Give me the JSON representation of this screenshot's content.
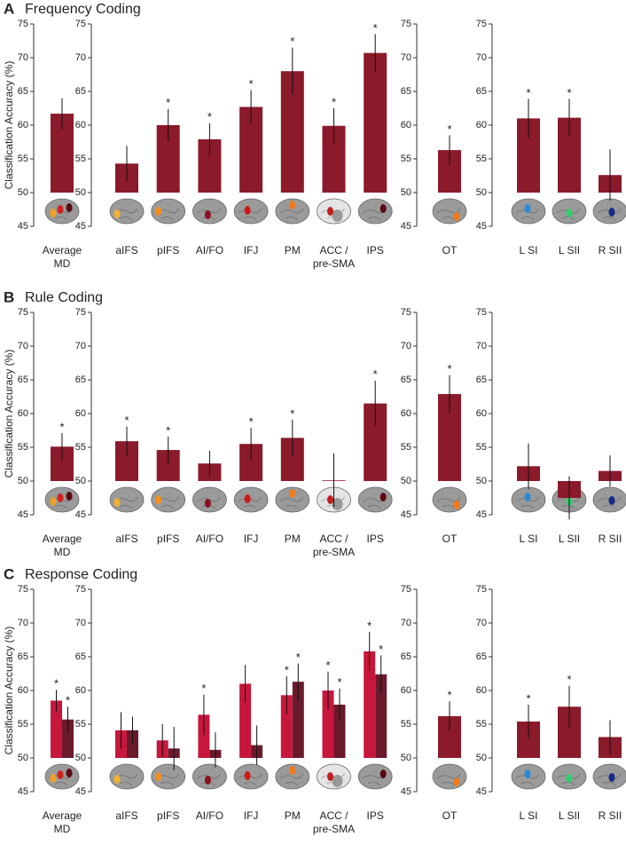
{
  "chart_data": [
    {
      "type": "bar",
      "panel_label": "A",
      "title": "Frequency Coding",
      "ylabel": "Classification Accuracy (%)",
      "ylim": [
        45,
        75
      ],
      "yticks": [
        45,
        50,
        55,
        60,
        65,
        70,
        75
      ],
      "baseline": 50,
      "groups": [
        {
          "categories": [
            "Average\nMD"
          ],
          "series": [
            {
              "color": "#8b1a2b",
              "values": [
                61.7
              ],
              "errors": [
                2.3
              ],
              "significance": [
                null
              ]
            }
          ]
        },
        {
          "categories": [
            "aIFS",
            "pIFS",
            "AI/FO",
            "IFJ",
            "PM",
            "ACC /\npre-SMA",
            "IPS"
          ],
          "series": [
            {
              "color": "#8b1a2b",
              "values": [
                54.3,
                60.0,
                57.9,
                62.7,
                68.0,
                59.9,
                70.7
              ],
              "errors": [
                2.6,
                2.4,
                2.4,
                2.5,
                3.5,
                2.6,
                2.8
              ],
              "significance": [
                null,
                "*",
                "*",
                "*",
                "*",
                "*",
                "*"
              ]
            }
          ]
        },
        {
          "categories": [
            "OT"
          ],
          "series": [
            {
              "color": "#8b1a2b",
              "values": [
                56.3
              ],
              "errors": [
                2.2
              ],
              "significance": [
                "*"
              ]
            }
          ]
        },
        {
          "categories": [
            "L SI",
            "L SII",
            "R SII"
          ],
          "series": [
            {
              "color": "#8b1a2b",
              "values": [
                61.0,
                61.1,
                52.6
              ],
              "errors": [
                2.9,
                2.8,
                3.8
              ],
              "significance": [
                "*",
                "*",
                null
              ]
            }
          ]
        }
      ]
    },
    {
      "type": "bar",
      "panel_label": "B",
      "title": "Rule Coding",
      "ylabel": "Classification Accuracy (%)",
      "ylim": [
        45,
        75
      ],
      "yticks": [
        45,
        50,
        55,
        60,
        65,
        70,
        75
      ],
      "baseline": 50,
      "groups": [
        {
          "categories": [
            "Average\nMD"
          ],
          "series": [
            {
              "color": "#8b1a2b",
              "values": [
                55.1
              ],
              "errors": [
                2.0
              ],
              "significance": [
                "*"
              ]
            }
          ]
        },
        {
          "categories": [
            "aIFS",
            "pIFS",
            "AI/FO",
            "IFJ",
            "PM",
            "ACC /\npre-SMA",
            "IPS"
          ],
          "series": [
            {
              "color": "#8b1a2b",
              "values": [
                55.9,
                54.6,
                52.6,
                55.5,
                56.4,
                50.1,
                61.5
              ],
              "errors": [
                2.2,
                2.0,
                1.9,
                2.4,
                2.7,
                4.0,
                3.4
              ],
              "significance": [
                "*",
                "*",
                null,
                "*",
                "*",
                null,
                "*"
              ]
            }
          ]
        },
        {
          "categories": [
            "OT"
          ],
          "series": [
            {
              "color": "#8b1a2b",
              "values": [
                62.9
              ],
              "errors": [
                2.8
              ],
              "significance": [
                "*"
              ]
            }
          ]
        },
        {
          "categories": [
            "L SI",
            "L SII",
            "R SII"
          ],
          "series": [
            {
              "color": "#8b1a2b",
              "values": [
                52.2,
                47.5,
                51.5
              ],
              "errors": [
                3.4,
                3.2,
                2.3
              ],
              "significance": [
                null,
                null,
                null
              ]
            }
          ]
        }
      ]
    },
    {
      "type": "bar",
      "panel_label": "C",
      "title": "Response Coding",
      "ylabel": "Classification Accuracy (%)",
      "ylim": [
        45,
        75
      ],
      "yticks": [
        45,
        50,
        55,
        60,
        65,
        70,
        75
      ],
      "baseline": 50,
      "groups": [
        {
          "categories": [
            "Average\nMD"
          ],
          "series": [
            {
              "color": "#c8173c",
              "values": [
                58.5
              ],
              "errors": [
                1.6
              ],
              "significance": [
                "*"
              ]
            },
            {
              "color": "#6b1a2c",
              "values": [
                55.7
              ],
              "errors": [
                1.9
              ],
              "significance": [
                "*"
              ]
            }
          ]
        },
        {
          "categories": [
            "aIFS",
            "pIFS",
            "AI/FO",
            "IFJ",
            "PM",
            "ACC /\npre-SMA",
            "IPS"
          ],
          "series": [
            {
              "color": "#c8173c",
              "values": [
                54.1,
                52.6,
                56.4,
                61.0,
                59.3,
                60.0,
                65.8
              ],
              "errors": [
                2.7,
                2.4,
                3.0,
                2.8,
                2.8,
                2.8,
                2.9
              ],
              "significance": [
                null,
                null,
                "*",
                null,
                "*",
                "*",
                "*"
              ]
            },
            {
              "color": "#6b1a2c",
              "values": [
                54.1,
                51.4,
                51.2,
                51.9,
                61.3,
                57.9,
                62.4
              ],
              "errors": [
                2.0,
                3.2,
                2.6,
                2.9,
                2.7,
                2.4,
                2.8
              ],
              "significance": [
                null,
                null,
                null,
                null,
                "*",
                "*",
                "*"
              ]
            }
          ]
        },
        {
          "categories": [
            "OT"
          ],
          "series": [
            {
              "color": "#8b1a2b",
              "values": [
                56.2
              ],
              "errors": [
                2.2
              ],
              "significance": [
                "*"
              ]
            }
          ]
        },
        {
          "categories": [
            "L SI",
            "L SII",
            "R SII"
          ],
          "series": [
            {
              "color": "#8b1a2b",
              "values": [
                55.4,
                57.6,
                53.1
              ],
              "errors": [
                2.5,
                3.1,
                2.5
              ],
              "significance": [
                "*",
                "*",
                null
              ]
            }
          ]
        }
      ]
    }
  ]
}
